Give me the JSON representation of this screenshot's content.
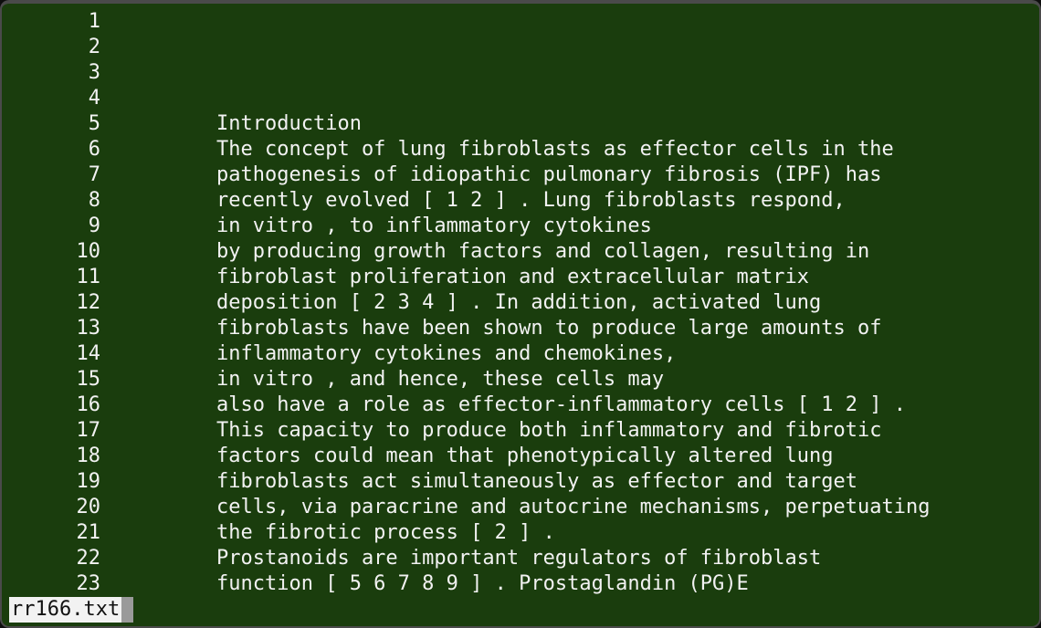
{
  "editor": {
    "lines": [
      {
        "num": "1",
        "text": ""
      },
      {
        "num": "2",
        "text": ""
      },
      {
        "num": "3",
        "text": ""
      },
      {
        "num": "4",
        "text": ""
      },
      {
        "num": "5",
        "text": "Introduction"
      },
      {
        "num": "6",
        "text": "The concept of lung fibroblasts as effector cells in the"
      },
      {
        "num": "7",
        "text": "pathogenesis of idiopathic pulmonary fibrosis (IPF) has"
      },
      {
        "num": "8",
        "text": "recently evolved [ 1 2 ] . Lung fibroblasts respond,"
      },
      {
        "num": "9",
        "text": "in vitro , to inflammatory cytokines"
      },
      {
        "num": "10",
        "text": "by producing growth factors and collagen, resulting in"
      },
      {
        "num": "11",
        "text": "fibroblast proliferation and extracellular matrix"
      },
      {
        "num": "12",
        "text": "deposition [ 2 3 4 ] . In addition, activated lung"
      },
      {
        "num": "13",
        "text": "fibroblasts have been shown to produce large amounts of"
      },
      {
        "num": "14",
        "text": "inflammatory cytokines and chemokines,"
      },
      {
        "num": "15",
        "text": "in vitro , and hence, these cells may"
      },
      {
        "num": "16",
        "text": "also have a role as effector-inflammatory cells [ 1 2 ] ."
      },
      {
        "num": "17",
        "text": "This capacity to produce both inflammatory and fibrotic"
      },
      {
        "num": "18",
        "text": "factors could mean that phenotypically altered lung"
      },
      {
        "num": "19",
        "text": "fibroblasts act simultaneously as effector and target"
      },
      {
        "num": "20",
        "text": "cells, via paracrine and autocrine mechanisms, perpetuating"
      },
      {
        "num": "21",
        "text": "the fibrotic process [ 2 ] ."
      },
      {
        "num": "22",
        "text": "Prostanoids are important regulators of fibroblast"
      },
      {
        "num": "23",
        "text": "function [ 5 6 7 8 9 ] . Prostaglandin (PG)E"
      }
    ]
  },
  "status": {
    "filename": "rr166.txt"
  },
  "colors": {
    "background": "#1a3d0d",
    "text": "#f2f2f2",
    "status_bg": "#f2f2f2",
    "cursor": "#9a9a9a"
  }
}
